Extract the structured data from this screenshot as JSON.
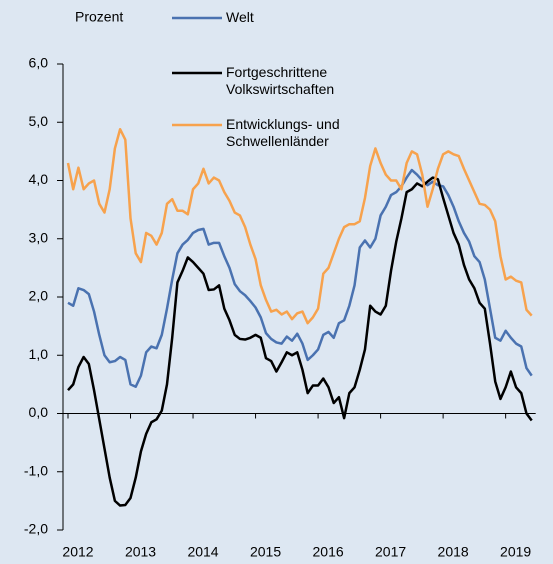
{
  "chart_data": {
    "type": "line",
    "y_label": "Prozent",
    "categories": [
      "2012",
      null,
      null,
      null,
      null,
      null,
      null,
      null,
      null,
      null,
      null,
      null,
      "2013",
      null,
      null,
      null,
      null,
      null,
      null,
      null,
      null,
      null,
      null,
      null,
      "2014",
      null,
      null,
      null,
      null,
      null,
      null,
      null,
      null,
      null,
      null,
      null,
      "2015",
      null,
      null,
      null,
      null,
      null,
      null,
      null,
      null,
      null,
      null,
      null,
      "2016",
      null,
      null,
      null,
      null,
      null,
      null,
      null,
      null,
      null,
      null,
      null,
      "2017",
      null,
      null,
      null,
      null,
      null,
      null,
      null,
      null,
      null,
      null,
      null,
      "2018",
      null,
      null,
      null,
      null,
      null,
      null,
      null,
      null,
      null,
      null,
      null,
      "2019",
      null,
      null,
      null,
      null,
      null
    ],
    "series": [
      {
        "name": "Welt",
        "color": "#4a72b0",
        "values": [
          1.9,
          1.85,
          2.15,
          2.12,
          2.05,
          1.75,
          1.35,
          1.0,
          0.88,
          0.9,
          0.97,
          0.92,
          0.5,
          0.46,
          0.65,
          1.05,
          1.15,
          1.12,
          1.35,
          1.8,
          2.3,
          2.75,
          2.9,
          2.98,
          3.1,
          3.15,
          3.17,
          2.9,
          2.93,
          2.93,
          2.7,
          2.5,
          2.22,
          2.1,
          2.03,
          1.93,
          1.82,
          1.65,
          1.38,
          1.28,
          1.22,
          1.2,
          1.32,
          1.25,
          1.37,
          1.2,
          0.92,
          1.0,
          1.1,
          1.35,
          1.4,
          1.3,
          1.55,
          1.6,
          1.85,
          2.2,
          2.85,
          2.97,
          2.85,
          3.0,
          3.4,
          3.55,
          3.75,
          3.8,
          3.9,
          4.05,
          4.18,
          4.1,
          4.0,
          3.92,
          3.98,
          3.92,
          3.9,
          3.75,
          3.55,
          3.3,
          3.1,
          2.95,
          2.7,
          2.6,
          2.3,
          1.8,
          1.3,
          1.25,
          1.42,
          1.3,
          1.2,
          1.15,
          0.78,
          0.65
        ]
      },
      {
        "name": "Fortgeschrittene Volkswirtschaften",
        "color": "#000000",
        "values": [
          0.4,
          0.5,
          0.8,
          0.97,
          0.85,
          0.4,
          -0.1,
          -0.6,
          -1.1,
          -1.5,
          -1.58,
          -1.57,
          -1.45,
          -1.1,
          -0.65,
          -0.35,
          -0.15,
          -0.1,
          0.05,
          0.5,
          1.3,
          2.25,
          2.45,
          2.68,
          2.6,
          2.5,
          2.4,
          2.12,
          2.13,
          2.2,
          1.8,
          1.6,
          1.35,
          1.28,
          1.27,
          1.3,
          1.35,
          1.3,
          0.95,
          0.9,
          0.72,
          0.88,
          1.05,
          1.0,
          1.05,
          0.75,
          0.35,
          0.48,
          0.48,
          0.6,
          0.45,
          0.18,
          0.28,
          -0.08,
          0.35,
          0.45,
          0.75,
          1.1,
          1.85,
          1.75,
          1.7,
          1.85,
          2.45,
          2.95,
          3.35,
          3.8,
          3.85,
          3.95,
          3.9,
          3.98,
          4.05,
          4.02,
          3.7,
          3.4,
          3.1,
          2.9,
          2.55,
          2.3,
          2.15,
          1.9,
          1.8,
          1.2,
          0.55,
          0.25,
          0.45,
          0.72,
          0.45,
          0.35,
          0.0,
          -0.12
        ]
      },
      {
        "name": "Entwicklungs- und Schwellenländer",
        "color": "#f7a24d",
        "values": [
          4.3,
          3.85,
          4.22,
          3.85,
          3.95,
          4.0,
          3.6,
          3.45,
          3.85,
          4.55,
          4.88,
          4.7,
          3.35,
          2.75,
          2.6,
          3.1,
          3.05,
          2.9,
          3.1,
          3.6,
          3.68,
          3.48,
          3.48,
          3.42,
          3.85,
          3.95,
          4.2,
          3.95,
          4.05,
          4.0,
          3.8,
          3.65,
          3.45,
          3.4,
          3.2,
          2.9,
          2.65,
          2.2,
          1.95,
          1.75,
          1.78,
          1.7,
          1.75,
          1.62,
          1.72,
          1.75,
          1.55,
          1.65,
          1.8,
          2.4,
          2.5,
          2.75,
          3.0,
          3.2,
          3.25,
          3.25,
          3.3,
          3.7,
          4.25,
          4.55,
          4.3,
          4.1,
          4.0,
          4.0,
          3.85,
          4.3,
          4.5,
          4.45,
          4.1,
          3.55,
          3.85,
          4.2,
          4.45,
          4.5,
          4.45,
          4.42,
          4.2,
          4.0,
          3.8,
          3.6,
          3.58,
          3.5,
          3.3,
          2.7,
          2.3,
          2.35,
          2.28,
          2.25,
          1.78,
          1.68
        ]
      }
    ],
    "ylim": [
      -2,
      6
    ],
    "yticks": [
      {
        "value": -2,
        "label": "-2,0"
      },
      {
        "value": -1,
        "label": "-1,0"
      },
      {
        "value": 0,
        "label": "0,0"
      },
      {
        "value": 1,
        "label": "1,0"
      },
      {
        "value": 2,
        "label": "2,0"
      },
      {
        "value": 3,
        "label": "3,0"
      },
      {
        "value": 4,
        "label": "4,0"
      },
      {
        "value": 5,
        "label": "5,0"
      },
      {
        "value": 6,
        "label": "6,0"
      }
    ]
  }
}
